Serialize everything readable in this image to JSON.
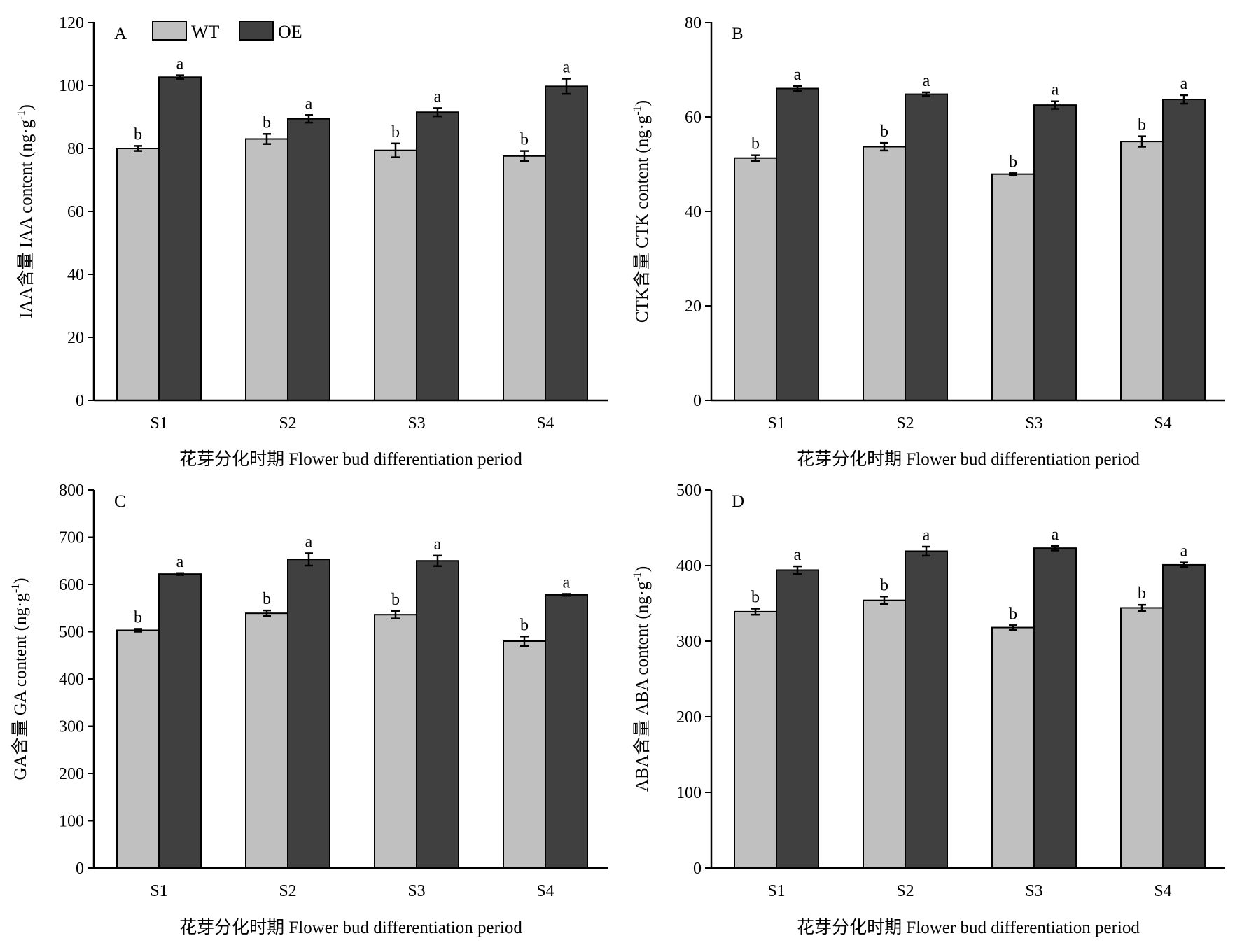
{
  "legend": {
    "wt": "WT",
    "oe": "OE"
  },
  "chart_data": [
    {
      "type": "bar",
      "panel_label": "A",
      "categories": [
        "S1",
        "S2",
        "S3",
        "S4"
      ],
      "ylim": [
        0,
        120
      ],
      "yticks": [
        0,
        20,
        40,
        60,
        80,
        100,
        120
      ],
      "ylabel_main": "IAA含量 IAA content (ng·g",
      "ylabel_sup": "-1",
      "ylabel_end": ")",
      "xlabel": "花芽分化时期 Flower bud differentiation period",
      "legend_placement": "top-left",
      "grid": false,
      "series": [
        {
          "name": "WT",
          "color": "#c0c0c0",
          "values": [
            80,
            83,
            79.4,
            77.6
          ],
          "errors": [
            0.8,
            1.6,
            2.2,
            1.6
          ],
          "letters": [
            "b",
            "b",
            "b",
            "b"
          ]
        },
        {
          "name": "OE",
          "color": "#404040",
          "values": [
            102.6,
            89.4,
            91.5,
            99.7
          ],
          "errors": [
            0.6,
            1.2,
            1.3,
            2.4
          ],
          "letters": [
            "a",
            "a",
            "a",
            "a"
          ]
        }
      ]
    },
    {
      "type": "bar",
      "panel_label": "B",
      "categories": [
        "S1",
        "S2",
        "S3",
        "S4"
      ],
      "ylim": [
        0,
        80
      ],
      "yticks": [
        0,
        20,
        40,
        60,
        80
      ],
      "ylabel_main": "CTK含量 CTK content (ng·g",
      "ylabel_sup": "-1",
      "ylabel_end": ")",
      "xlabel": "花芽分化时期 Flower bud differentiation period",
      "grid": false,
      "series": [
        {
          "name": "WT",
          "color": "#c0c0c0",
          "values": [
            51.3,
            53.7,
            47.9,
            54.8
          ],
          "errors": [
            0.6,
            0.8,
            0.2,
            1.1
          ],
          "letters": [
            "b",
            "b",
            "b",
            "b"
          ]
        },
        {
          "name": "OE",
          "color": "#404040",
          "values": [
            66,
            64.8,
            62.5,
            63.7
          ],
          "errors": [
            0.5,
            0.4,
            0.8,
            0.9
          ],
          "letters": [
            "a",
            "a",
            "a",
            "a"
          ]
        }
      ]
    },
    {
      "type": "bar",
      "panel_label": "C",
      "categories": [
        "S1",
        "S2",
        "S3",
        "S4"
      ],
      "ylim": [
        0,
        800
      ],
      "yticks": [
        0,
        100,
        200,
        300,
        400,
        500,
        600,
        700,
        800
      ],
      "ylabel_main": "GA含量 GA content (ng·g",
      "ylabel_sup": "-1",
      "ylabel_end": ")",
      "xlabel": "花芽分化时期 Flower bud differentiation period",
      "grid": false,
      "series": [
        {
          "name": "WT",
          "color": "#c0c0c0",
          "values": [
            503,
            539,
            536,
            480
          ],
          "errors": [
            3,
            6,
            8,
            10
          ],
          "letters": [
            "b",
            "b",
            "b",
            "b"
          ]
        },
        {
          "name": "OE",
          "color": "#404040",
          "values": [
            622,
            653,
            650,
            578
          ],
          "errors": [
            2,
            13,
            11,
            2
          ],
          "letters": [
            "a",
            "a",
            "a",
            "a"
          ]
        }
      ]
    },
    {
      "type": "bar",
      "panel_label": "D",
      "categories": [
        "S1",
        "S2",
        "S3",
        "S4"
      ],
      "ylim": [
        0,
        500
      ],
      "yticks": [
        0,
        100,
        200,
        300,
        400,
        500
      ],
      "ylabel_main": "ABA含量 ABA content (ng·g",
      "ylabel_sup": "-1",
      "ylabel_end": ")",
      "xlabel": "花芽分化时期 Flower bud differentiation period",
      "grid": false,
      "series": [
        {
          "name": "WT",
          "color": "#c0c0c0",
          "values": [
            339,
            354,
            318,
            344
          ],
          "errors": [
            4,
            5,
            3,
            4
          ],
          "letters": [
            "b",
            "b",
            "b",
            "b"
          ]
        },
        {
          "name": "OE",
          "color": "#404040",
          "values": [
            394,
            419,
            423,
            401
          ],
          "errors": [
            5,
            6,
            3,
            3
          ],
          "letters": [
            "a",
            "a",
            "a",
            "a"
          ]
        }
      ]
    }
  ]
}
